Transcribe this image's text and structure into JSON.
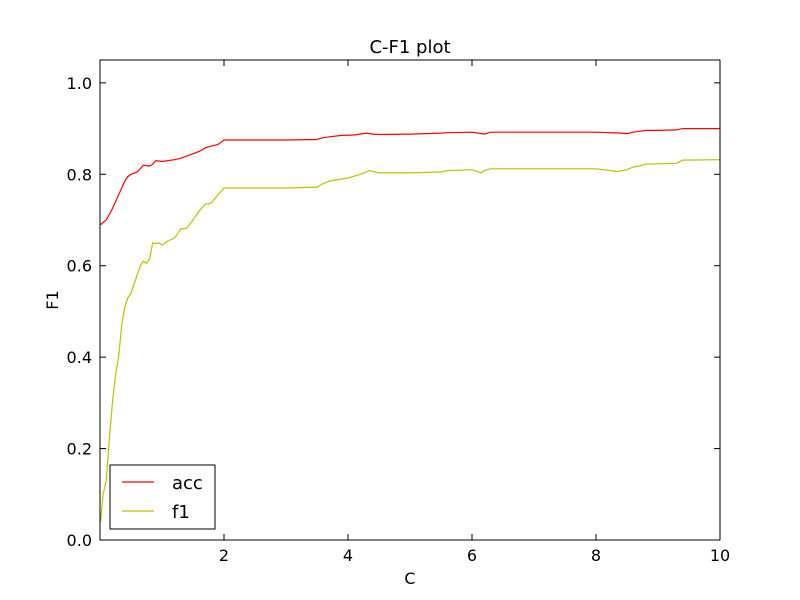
{
  "chart_data": {
    "type": "line",
    "title": "C-F1 plot",
    "xlabel": "C",
    "ylabel": "F1",
    "xlim": [
      0,
      10
    ],
    "ylim": [
      0,
      1.05
    ],
    "xticks": [
      2,
      4,
      6,
      8,
      10
    ],
    "xtick_labels": [
      "2",
      "4",
      "6",
      "8",
      "10"
    ],
    "yticks": [
      0,
      0.2,
      0.4,
      0.6,
      0.8,
      1.0
    ],
    "ytick_labels": [
      "0.0",
      "0.2",
      "0.4",
      "0.6",
      "0.8",
      "1.0"
    ],
    "grid": false,
    "legend_position": "lower-left",
    "series": [
      {
        "name": "acc",
        "color": "#ff0000",
        "x": [
          0.01,
          0.1,
          0.2,
          0.3,
          0.4,
          0.45,
          0.5,
          0.6,
          0.7,
          0.8,
          0.85,
          0.9,
          1.0,
          1.1,
          1.2,
          1.3,
          1.5,
          1.6,
          1.7,
          1.8,
          1.9,
          2.0,
          2.5,
          3.0,
          3.5,
          3.6,
          3.7,
          3.9,
          4.1,
          4.3,
          4.4,
          4.5,
          5.0,
          5.5,
          5.6,
          6.0,
          6.15,
          6.2,
          6.3,
          7.0,
          8.0,
          8.4,
          8.5,
          8.6,
          8.7,
          8.8,
          9.0,
          9.3,
          9.4,
          10.0
        ],
        "y": [
          0.69,
          0.7,
          0.725,
          0.755,
          0.785,
          0.795,
          0.8,
          0.805,
          0.82,
          0.818,
          0.822,
          0.83,
          0.828,
          0.83,
          0.832,
          0.835,
          0.845,
          0.85,
          0.858,
          0.862,
          0.865,
          0.875,
          0.875,
          0.875,
          0.876,
          0.88,
          0.882,
          0.885,
          0.886,
          0.89,
          0.888,
          0.887,
          0.888,
          0.89,
          0.891,
          0.892,
          0.889,
          0.888,
          0.892,
          0.892,
          0.892,
          0.89,
          0.889,
          0.892,
          0.894,
          0.896,
          0.896,
          0.897,
          0.9,
          0.9
        ]
      },
      {
        "name": "f1",
        "color": "#bfbf00",
        "x": [
          0.01,
          0.05,
          0.1,
          0.15,
          0.2,
          0.25,
          0.3,
          0.35,
          0.4,
          0.45,
          0.5,
          0.55,
          0.6,
          0.65,
          0.7,
          0.75,
          0.8,
          0.85,
          0.9,
          0.95,
          1.0,
          1.1,
          1.2,
          1.3,
          1.4,
          1.5,
          1.6,
          1.7,
          1.75,
          1.8,
          1.9,
          2.0,
          2.5,
          3.0,
          3.5,
          3.6,
          3.7,
          4.0,
          4.2,
          4.35,
          4.45,
          4.5,
          5.0,
          5.5,
          5.6,
          6.0,
          6.15,
          6.2,
          6.3,
          7.0,
          8.0,
          8.35,
          8.5,
          8.6,
          8.7,
          8.8,
          9.0,
          9.3,
          9.4,
          10.0
        ],
        "y": [
          0.04,
          0.1,
          0.13,
          0.22,
          0.3,
          0.36,
          0.4,
          0.47,
          0.51,
          0.53,
          0.54,
          0.56,
          0.58,
          0.6,
          0.61,
          0.605,
          0.615,
          0.65,
          0.648,
          0.65,
          0.645,
          0.655,
          0.66,
          0.68,
          0.682,
          0.7,
          0.72,
          0.735,
          0.735,
          0.738,
          0.755,
          0.77,
          0.77,
          0.77,
          0.772,
          0.78,
          0.785,
          0.792,
          0.8,
          0.808,
          0.805,
          0.803,
          0.803,
          0.805,
          0.808,
          0.81,
          0.803,
          0.808,
          0.812,
          0.812,
          0.812,
          0.806,
          0.81,
          0.816,
          0.818,
          0.822,
          0.823,
          0.824,
          0.831,
          0.832
        ]
      }
    ]
  }
}
